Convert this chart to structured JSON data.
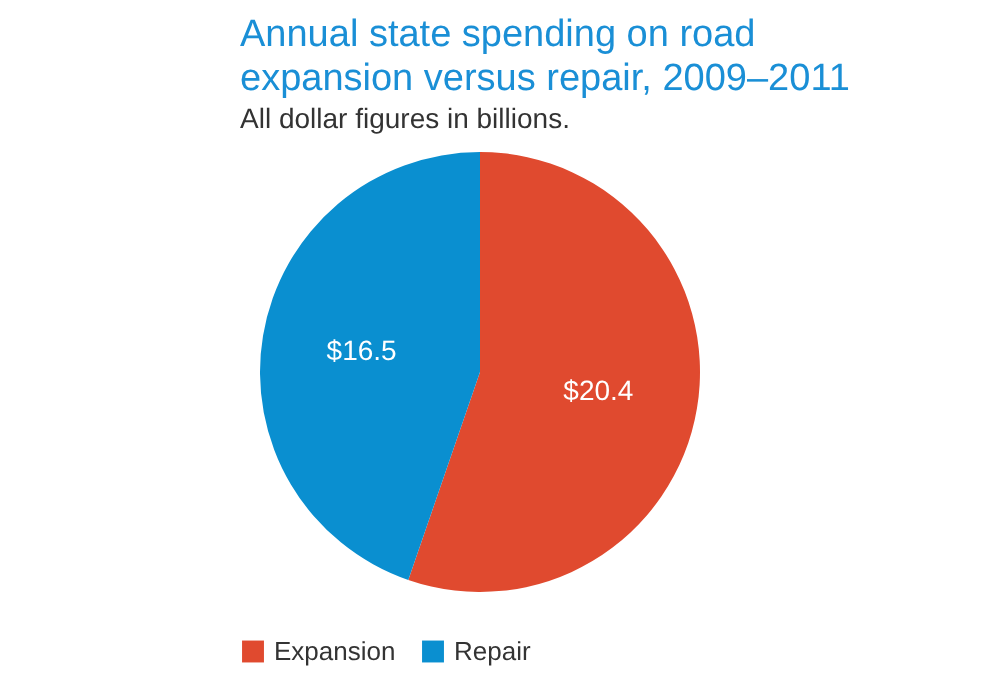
{
  "chart_data": {
    "type": "pie",
    "title": "Annual state spending on road expansion versus repair, 2009–2011",
    "subtitle": "All dollar figures in billions.",
    "categories": [
      "Expansion",
      "Repair"
    ],
    "values": [
      20.4,
      16.5
    ],
    "colors": [
      "#e04a2f",
      "#0a8fd0"
    ],
    "value_labels": [
      "$20.4",
      "$16.5"
    ],
    "legend": "bottom"
  }
}
